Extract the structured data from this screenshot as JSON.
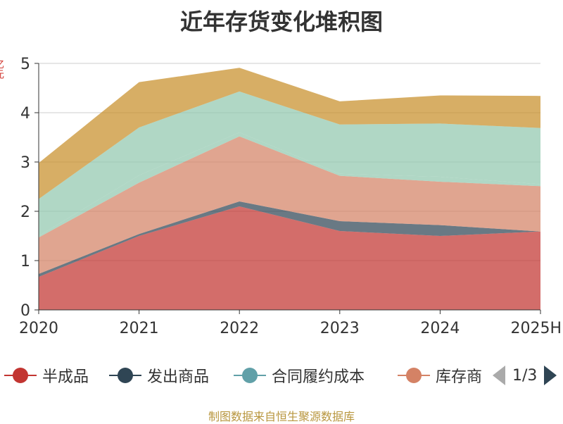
{
  "title": "近年存货变化堆积图",
  "ylabel_fragment": "亿元",
  "pager": {
    "text": "1/3"
  },
  "source": "制图数据来自恒生聚源数据库",
  "colors": [
    "#c23531",
    "#2f4554",
    "#61a0a8",
    "#d48265",
    "#91c7ae",
    "#c78f2a"
  ],
  "chart_data": {
    "type": "area",
    "stacked": true,
    "categories": [
      "2020",
      "2021",
      "2022",
      "2023",
      "2024",
      "2025H"
    ],
    "ylim": [
      0,
      5
    ],
    "yticks": [
      0,
      1,
      2,
      3,
      4,
      5
    ],
    "grid": true,
    "legend_position": "bottom",
    "series": [
      {
        "name": "半成品",
        "color": "#c23531",
        "values": [
          0.67,
          1.5,
          2.1,
          1.6,
          1.5,
          1.59
        ]
      },
      {
        "name": "发出商品",
        "color": "#2f4554",
        "values": [
          0.06,
          0.04,
          0.1,
          0.2,
          0.22,
          0.0
        ]
      },
      {
        "name": "合同履约成本",
        "color": "#61a0a8",
        "values": [
          0.0,
          0.0,
          0.0,
          0.0,
          0.0,
          0.0
        ]
      },
      {
        "name": "库存商品",
        "color": "#d48265",
        "values": [
          0.74,
          1.04,
          1.32,
          0.92,
          0.88,
          0.92
        ]
      },
      {
        "name": "",
        "color": "#91c7ae",
        "values": [
          0.03,
          0.15,
          0.08,
          0.04,
          0.1,
          0.04
        ]
      },
      {
        "name": "",
        "color": "#91c7ae",
        "values": [
          0.75,
          0.97,
          0.83,
          1.0,
          1.08,
          1.14
        ]
      },
      {
        "name": "",
        "color": "#c78f2a",
        "values": [
          0.73,
          0.92,
          0.48,
          0.47,
          0.57,
          0.65
        ]
      }
    ]
  },
  "legend": [
    {
      "label": "半成品",
      "color": "#c23531"
    },
    {
      "label": "发出商品",
      "color": "#2f4554"
    },
    {
      "label": "合同履约成本",
      "color": "#61a0a8"
    },
    {
      "label": "库存商品",
      "color": "#d48265"
    }
  ]
}
